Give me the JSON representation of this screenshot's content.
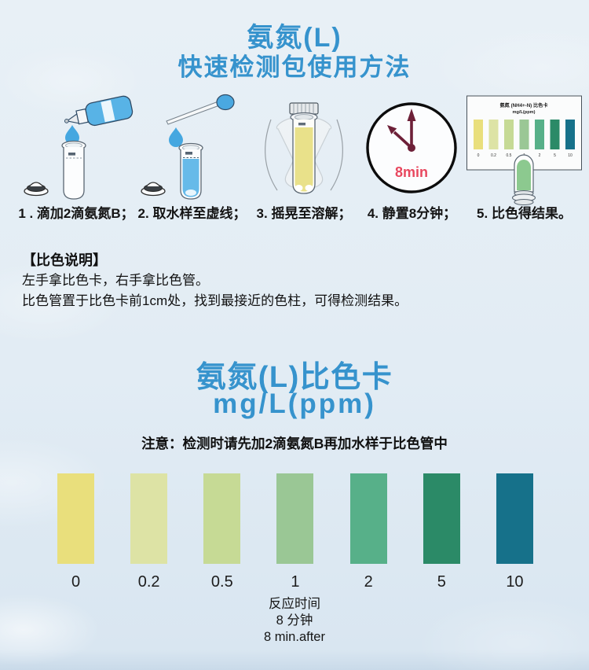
{
  "header": {
    "title_line1": "氨氮(L)",
    "title_line2": "快速检测包使用方法"
  },
  "steps": [
    {
      "label": "1 . 滴加2滴氨氮B；"
    },
    {
      "label": "2. 取水样至虚线；"
    },
    {
      "label": "3. 摇晃至溶解；"
    },
    {
      "label": "4. 静置8分钟；"
    },
    {
      "label": "5. 比色得结果。"
    }
  ],
  "clock": {
    "time_label": "8min"
  },
  "mini_card": {
    "title_line1": "氨氮 (NH4+-N) 比色卡",
    "title_line2": "mg/L(ppm)"
  },
  "colorimetric_instructions": {
    "heading": "【比色说明】",
    "line1": "左手拿比色卡，右手拿比色管。",
    "line2": "比色管置于比色卡前1cm处，找到最接近的色柱，可得检测结果。"
  },
  "color_card": {
    "title_line1": "氨氮(L)比色卡",
    "title_line2": "mg/L(ppm)",
    "note": "注意：检测时请先加2滴氨氮B再加水样于比色管中",
    "swatches": [
      {
        "value": "0",
        "color": "#e9df7c"
      },
      {
        "value": "0.2",
        "color": "#dde3a5"
      },
      {
        "value": "0.5",
        "color": "#c6da95"
      },
      {
        "value": "1",
        "color": "#9ac795"
      },
      {
        "value": "2",
        "color": "#57b089"
      },
      {
        "value": "5",
        "color": "#2b8a67"
      },
      {
        "value": "10",
        "color": "#16718a"
      }
    ],
    "footer_line1": "反应时间",
    "footer_line2": "8 分钟",
    "footer_line3": "8 min.after"
  },
  "colors": {
    "title_blue": "#3693cd",
    "clock_hand": "#6d2038",
    "clock_time_red": "#e8485f",
    "drop_blue": "#45a7e0",
    "sample_blue": "#66bae9",
    "reagent_yellow": "#e9e18a",
    "result_green": "#8cc98f"
  }
}
